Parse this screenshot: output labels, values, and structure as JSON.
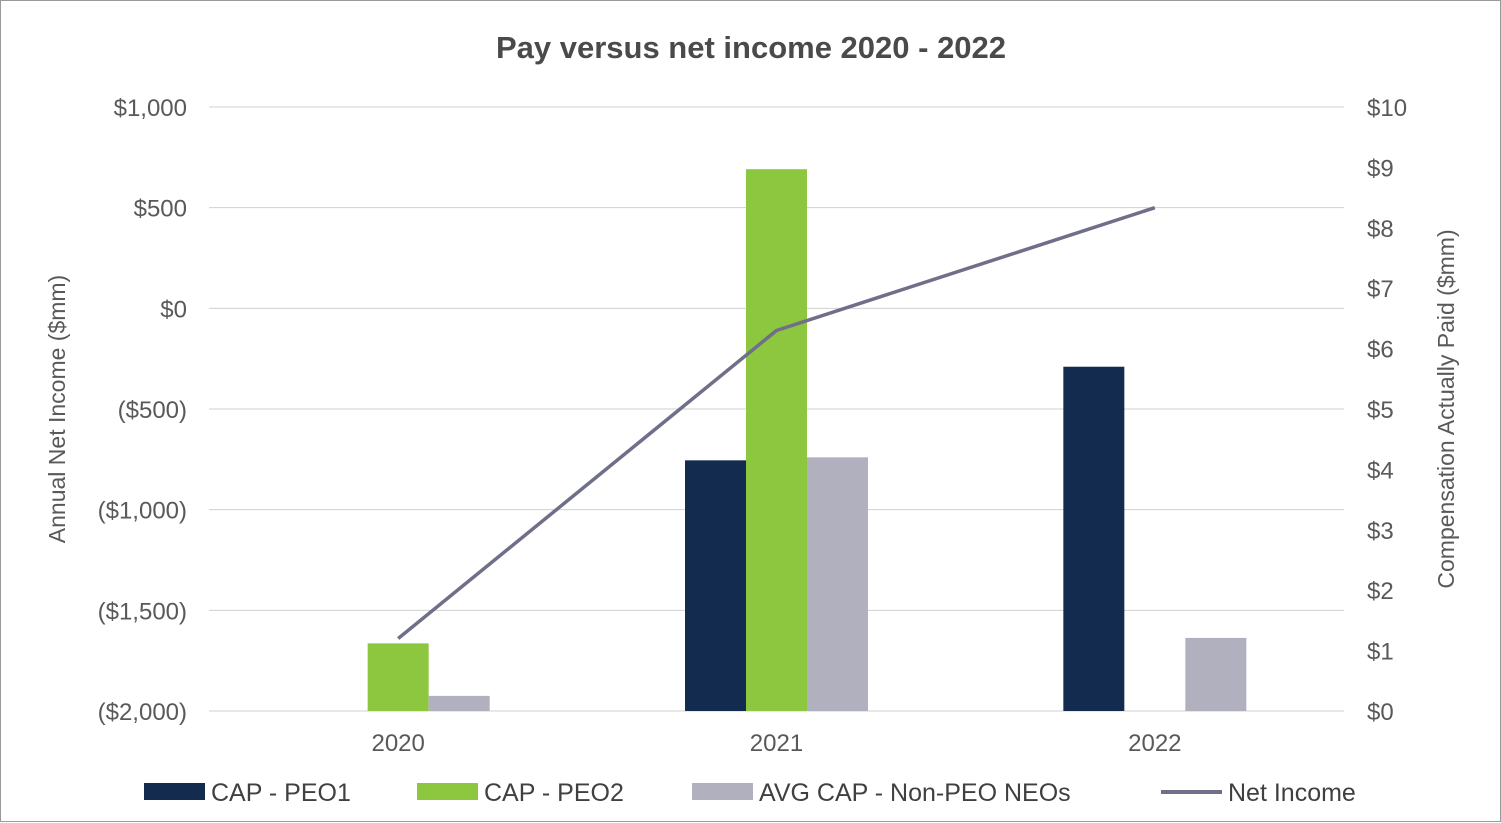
{
  "chart_data": {
    "type": "bar",
    "title": "Pay versus net income 2020 - 2022",
    "categories": [
      "2020",
      "2021",
      "2022"
    ],
    "y_left": {
      "label": "Annual Net Income ($mm)",
      "range": [
        -2000,
        1000
      ],
      "ticks": [
        1000,
        500,
        0,
        -500,
        -1000,
        -1500,
        -2000
      ],
      "tick_labels": [
        "$1,000",
        "$500",
        "$0",
        "($500)",
        "($1,000)",
        "($1,500)",
        "($2,000)"
      ]
    },
    "y_right": {
      "label": "Compensation Actually Paid ($mm)",
      "range": [
        0,
        10
      ],
      "ticks": [
        10,
        9,
        8,
        7,
        6,
        5,
        4,
        3,
        2,
        1,
        0
      ],
      "tick_labels": [
        "$10",
        "$9",
        "$8",
        "$7",
        "$6",
        "$5",
        "$4",
        "$3",
        "$2",
        "$1",
        "$0"
      ]
    },
    "series": [
      {
        "name": "CAP - PEO1",
        "type": "bar",
        "axis": "right",
        "color": "#122b4f",
        "values": [
          0,
          4.15,
          5.7
        ]
      },
      {
        "name": "CAP - PEO2",
        "type": "bar",
        "axis": "right",
        "color": "#8dc63f",
        "values": [
          1.12,
          8.97,
          0
        ]
      },
      {
        "name": "AVG CAP - Non-PEO NEOs",
        "type": "bar",
        "axis": "right",
        "color": "#b0b0bf",
        "values": [
          0.25,
          4.2,
          1.21
        ]
      },
      {
        "name": "Net Income",
        "type": "line",
        "axis": "left",
        "color": "#6f6f8a",
        "values": [
          -1640,
          -110,
          500
        ]
      }
    ],
    "grid": true,
    "legend": "bottom"
  }
}
